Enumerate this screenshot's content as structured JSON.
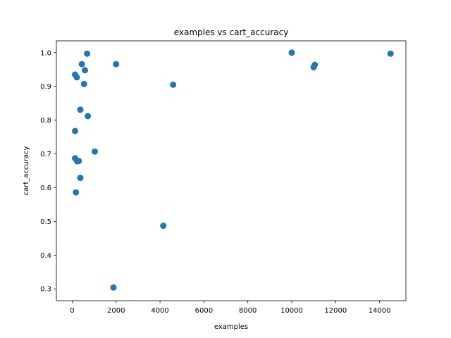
{
  "chart_data": {
    "type": "scatter",
    "title": "examples vs cart_accuracy",
    "xlabel": "examples",
    "ylabel": "cart_accuracy",
    "xlim": [
      -720,
      15200
    ],
    "ylim": [
      0.265,
      1.035
    ],
    "xticks": [
      0,
      2000,
      4000,
      6000,
      8000,
      10000,
      12000,
      14000
    ],
    "yticks": [
      0.3,
      0.4,
      0.5,
      0.6,
      0.7,
      0.8,
      0.9,
      1.0
    ],
    "xtick_labels": [
      "0",
      "2000",
      "4000",
      "6000",
      "8000",
      "10000",
      "12000",
      "14000"
    ],
    "ytick_labels": [
      "0.3",
      "0.4",
      "0.5",
      "0.6",
      "0.7",
      "0.8",
      "0.9",
      "1.0"
    ],
    "grid": false,
    "color": "#1f77b4",
    "points": [
      {
        "x": 130,
        "y": 0.935
      },
      {
        "x": 210,
        "y": 0.927
      },
      {
        "x": 440,
        "y": 0.966
      },
      {
        "x": 580,
        "y": 0.948
      },
      {
        "x": 680,
        "y": 0.997
      },
      {
        "x": 540,
        "y": 0.907
      },
      {
        "x": 370,
        "y": 0.831
      },
      {
        "x": 710,
        "y": 0.812
      },
      {
        "x": 130,
        "y": 0.768
      },
      {
        "x": 130,
        "y": 0.687
      },
      {
        "x": 1030,
        "y": 0.707
      },
      {
        "x": 230,
        "y": 0.678
      },
      {
        "x": 300,
        "y": 0.679
      },
      {
        "x": 370,
        "y": 0.629
      },
      {
        "x": 170,
        "y": 0.586
      },
      {
        "x": 2000,
        "y": 0.966
      },
      {
        "x": 1880,
        "y": 0.304
      },
      {
        "x": 4150,
        "y": 0.487
      },
      {
        "x": 4600,
        "y": 0.905
      },
      {
        "x": 10000,
        "y": 1.0
      },
      {
        "x": 11000,
        "y": 0.957
      },
      {
        "x": 11050,
        "y": 0.964
      },
      {
        "x": 14500,
        "y": 0.997
      }
    ]
  }
}
